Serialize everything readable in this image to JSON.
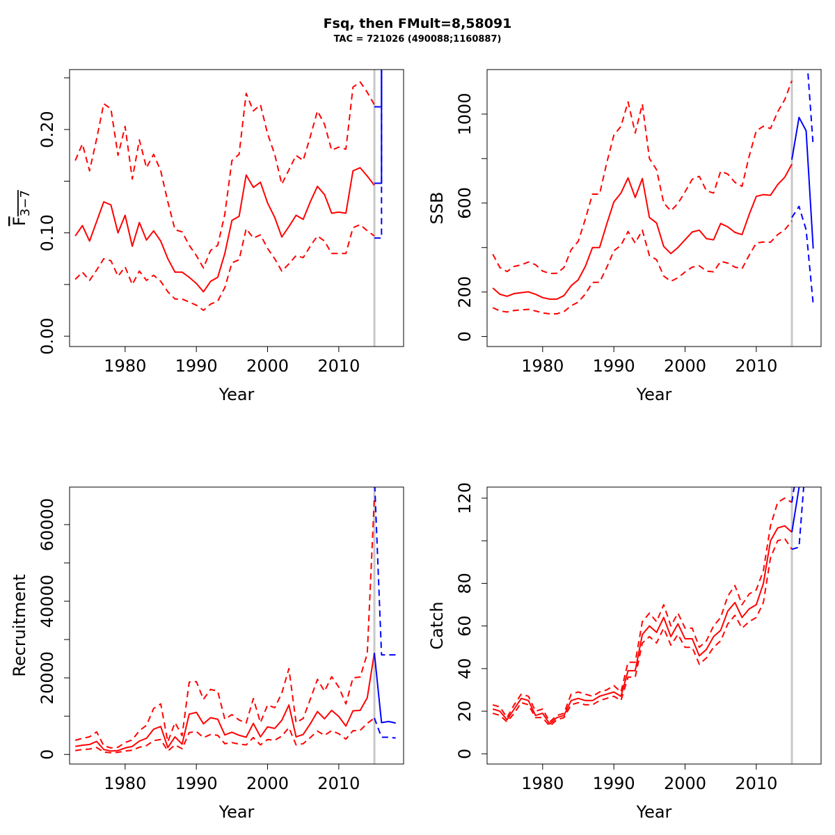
{
  "title": "Fsq, then FMult=8,58091",
  "subtitle": "TAC = 721026 (490088;1160887)",
  "colors": {
    "history": "#ff0000",
    "forecast": "#0000ff",
    "divider": "#c8c8c8",
    "axis": "#000000"
  },
  "chart_data": [
    {
      "id": "fbar",
      "type": "line",
      "xlabel": "Year",
      "ylabel_main": "F",
      "ylabel_sub": "3−7",
      "xlim": [
        1972.2,
        2019.1
      ],
      "ylim": [
        -0.01,
        0.258
      ],
      "xticks": [
        1980,
        1990,
        2000,
        2010
      ],
      "yticks": [
        0.0,
        0.05,
        0.1,
        0.15,
        0.2,
        0.25
      ],
      "yticklabels": [
        "0.00",
        "",
        "0.10",
        "",
        "0.20",
        ""
      ],
      "divider_x": 2015,
      "history": {
        "x": [
          1973,
          1974,
          1975,
          1976,
          1977,
          1978,
          1979,
          1980,
          1981,
          1982,
          1983,
          1984,
          1985,
          1986,
          1987,
          1988,
          1989,
          1990,
          1991,
          1992,
          1993,
          1994,
          1995,
          1996,
          1997,
          1998,
          1999,
          2000,
          2001,
          2002,
          2003,
          2004,
          2005,
          2006,
          2007,
          2008,
          2009,
          2010,
          2011,
          2012,
          2013,
          2014,
          2015
        ],
        "estimate": [
          0.097,
          0.107,
          0.092,
          0.111,
          0.13,
          0.127,
          0.1,
          0.117,
          0.087,
          0.11,
          0.093,
          0.102,
          0.092,
          0.075,
          0.062,
          0.062,
          0.057,
          0.051,
          0.043,
          0.053,
          0.057,
          0.08,
          0.112,
          0.116,
          0.156,
          0.144,
          0.149,
          0.129,
          0.115,
          0.096,
          0.106,
          0.117,
          0.113,
          0.13,
          0.145,
          0.137,
          0.119,
          0.12,
          0.119,
          0.16,
          0.163,
          0.155,
          0.146
        ],
        "lower": [
          0.055,
          0.062,
          0.054,
          0.064,
          0.075,
          0.073,
          0.058,
          0.067,
          0.05,
          0.063,
          0.054,
          0.059,
          0.053,
          0.043,
          0.036,
          0.036,
          0.033,
          0.03,
          0.025,
          0.031,
          0.034,
          0.047,
          0.071,
          0.074,
          0.104,
          0.095,
          0.098,
          0.085,
          0.075,
          0.063,
          0.07,
          0.078,
          0.076,
          0.087,
          0.097,
          0.092,
          0.08,
          0.08,
          0.08,
          0.105,
          0.108,
          0.102,
          0.097
        ],
        "upper": [
          0.17,
          0.186,
          0.16,
          0.191,
          0.225,
          0.22,
          0.175,
          0.203,
          0.152,
          0.19,
          0.163,
          0.176,
          0.16,
          0.13,
          0.103,
          0.101,
          0.088,
          0.078,
          0.066,
          0.083,
          0.088,
          0.118,
          0.17,
          0.176,
          0.235,
          0.218,
          0.224,
          0.196,
          0.176,
          0.147,
          0.161,
          0.175,
          0.17,
          0.193,
          0.218,
          0.205,
          0.18,
          0.183,
          0.181,
          0.241,
          0.246,
          0.236,
          0.224
        ]
      },
      "forecast": {
        "x": [
          2015,
          2016,
          2016,
          2017,
          2018
        ],
        "estimate": [
          0.148,
          0.148,
          0.4,
          0.4,
          0.4
        ],
        "lower": [
          0.095,
          0.095,
          0.3,
          0.3,
          0.3
        ],
        "upper": [
          0.222,
          0.222,
          0.5,
          0.5,
          0.5
        ]
      }
    },
    {
      "id": "ssb",
      "type": "line",
      "xlabel": "Year",
      "ylabel": "SSB",
      "xlim": [
        1972.2,
        2019.1
      ],
      "ylim": [
        -45,
        1200
      ],
      "xticks": [
        1980,
        1990,
        2000,
        2010
      ],
      "yticks": [
        0,
        200,
        400,
        600,
        800,
        1000
      ],
      "yticklabels": [
        "0",
        "200",
        "",
        "600",
        "",
        "1000"
      ],
      "divider_x": 2015,
      "history": {
        "x": [
          1973,
          1974,
          1975,
          1976,
          1977,
          1978,
          1979,
          1980,
          1981,
          1982,
          1983,
          1984,
          1985,
          1986,
          1987,
          1988,
          1989,
          1990,
          1991,
          1992,
          1993,
          1994,
          1995,
          1996,
          1997,
          1998,
          1999,
          2000,
          2001,
          2002,
          2003,
          2004,
          2005,
          2006,
          2007,
          2008,
          2009,
          2010,
          2011,
          2012,
          2013,
          2014,
          2015
        ],
        "estimate": [
          218,
          190,
          181,
          193,
          197,
          201,
          190,
          175,
          168,
          168,
          184,
          228,
          255,
          315,
          400,
          400,
          505,
          605,
          645,
          713,
          625,
          710,
          535,
          510,
          405,
          373,
          400,
          435,
          470,
          478,
          440,
          435,
          508,
          493,
          468,
          458,
          548,
          630,
          638,
          635,
          683,
          716,
          775
        ],
        "lower": [
          130,
          115,
          110,
          117,
          120,
          122,
          115,
          106,
          102,
          102,
          112,
          138,
          155,
          191,
          243,
          244,
          310,
          385,
          410,
          472,
          420,
          478,
          364,
          345,
          272,
          248,
          264,
          290,
          312,
          318,
          294,
          291,
          338,
          330,
          312,
          305,
          365,
          420,
          425,
          424,
          458,
          480,
          520
        ],
        "upper": [
          370,
          310,
          292,
          315,
          322,
          335,
          323,
          294,
          283,
          284,
          310,
          390,
          428,
          528,
          640,
          640,
          780,
          905,
          945,
          1055,
          915,
          1045,
          800,
          750,
          600,
          565,
          598,
          650,
          707,
          720,
          655,
          645,
          743,
          730,
          693,
          675,
          810,
          925,
          945,
          935,
          1010,
          1065,
          1150
        ]
      },
      "forecast": {
        "x": [
          2015,
          2016,
          2017,
          2018
        ],
        "estimate": [
          795,
          985,
          925,
          395
        ],
        "lower": [
          535,
          585,
          480,
          145
        ],
        "upper": [
          1250,
          1400,
          1300,
          855
        ]
      }
    },
    {
      "id": "recruitment",
      "type": "line",
      "xlabel": "Year",
      "ylabel": "Recruitment",
      "xlim": [
        1972.2,
        2019.1
      ],
      "ylim": [
        -2500,
        69800
      ],
      "xticks": [
        1980,
        1990,
        2000,
        2010
      ],
      "yticks": [
        0,
        10000,
        20000,
        30000,
        40000,
        50000,
        60000
      ],
      "yticklabels": [
        "0",
        "",
        "20000",
        "",
        "40000",
        "",
        "60000"
      ],
      "divider_x": 2015,
      "history": {
        "x": [
          1973,
          1974,
          1975,
          1976,
          1977,
          1978,
          1979,
          1980,
          1981,
          1982,
          1983,
          1984,
          1985,
          1986,
          1987,
          1988,
          1989,
          1990,
          1991,
          1992,
          1993,
          1994,
          1995,
          1996,
          1997,
          1998,
          1999,
          2000,
          2001,
          2002,
          2003,
          2004,
          2005,
          2006,
          2007,
          2008,
          2009,
          2010,
          2011,
          2012,
          2013,
          2014,
          2015
        ],
        "estimate": [
          2100,
          2400,
          2600,
          3400,
          1300,
          900,
          1000,
          1700,
          2100,
          3500,
          4200,
          6600,
          7300,
          1800,
          4600,
          2700,
          10500,
          11000,
          8000,
          9600,
          9200,
          5100,
          5800,
          5000,
          4500,
          8100,
          4600,
          7200,
          6800,
          8900,
          12900,
          4600,
          5200,
          8000,
          11200,
          9300,
          11500,
          9900,
          7400,
          11400,
          11500,
          14800,
          26500
        ],
        "lower": [
          1000,
          1300,
          1400,
          1800,
          600,
          450,
          550,
          900,
          1100,
          1900,
          2300,
          3600,
          3900,
          900,
          2500,
          1500,
          5700,
          6000,
          4400,
          5200,
          5000,
          2800,
          3100,
          2700,
          2500,
          4400,
          2500,
          3900,
          3700,
          4800,
          7000,
          2500,
          2800,
          4400,
          6100,
          5000,
          6200,
          5400,
          4000,
          6200,
          6300,
          8100,
          9500
        ],
        "upper": [
          3700,
          4200,
          4600,
          5900,
          2300,
          1700,
          1900,
          3100,
          3800,
          6200,
          7600,
          12000,
          13200,
          3300,
          8300,
          4900,
          18900,
          19000,
          14400,
          17000,
          16500,
          9200,
          10400,
          9000,
          8200,
          14600,
          8300,
          12900,
          12200,
          16000,
          22400,
          8300,
          9400,
          14400,
          19600,
          16500,
          20300,
          17600,
          13200,
          20000,
          20200,
          26300,
          67000
        ]
      },
      "forecast": {
        "x": [
          2015,
          2016,
          2017,
          2018
        ],
        "estimate": [
          26500,
          8300,
          8600,
          8200
        ],
        "lower": [
          9500,
          4500,
          4500,
          4300
        ],
        "upper": [
          73000,
          26000,
          26000,
          26000
        ]
      }
    },
    {
      "id": "catch",
      "type": "line",
      "xlabel": "Year",
      "ylabel": "Catch",
      "xlim": [
        1972.2,
        2019.1
      ],
      "ylim": [
        -4.8,
        125.2
      ],
      "xticks": [
        1980,
        1990,
        2000,
        2010
      ],
      "yticks": [
        0,
        20,
        40,
        60,
        80,
        100,
        120
      ],
      "yticklabels": [
        "0",
        "20",
        "40",
        "60",
        "80",
        "",
        "120"
      ],
      "divider_x": 2015,
      "history": {
        "x": [
          1973,
          1974,
          1975,
          1976,
          1977,
          1978,
          1979,
          1980,
          1981,
          1982,
          1983,
          1984,
          1985,
          1986,
          1987,
          1988,
          1989,
          1990,
          1991,
          1992,
          1993,
          1994,
          1995,
          1996,
          1997,
          1998,
          1999,
          2000,
          2001,
          2002,
          2003,
          2004,
          2005,
          2006,
          2007,
          2008,
          2009,
          2010,
          2011,
          2012,
          2013,
          2014,
          2015
        ],
        "estimate": [
          21,
          20,
          16,
          21,
          26,
          25,
          18,
          19,
          14,
          17,
          18,
          25,
          26,
          25,
          25,
          27,
          28,
          29,
          27,
          39,
          39,
          56,
          60,
          57,
          64,
          55,
          61,
          54,
          54,
          46,
          49,
          55,
          58,
          67,
          71,
          64,
          68,
          70,
          80,
          100,
          106,
          107,
          104
        ],
        "lower": [
          19,
          18,
          15,
          19,
          24,
          23,
          17,
          17,
          13,
          16,
          17,
          23,
          24,
          23,
          23,
          25,
          26,
          27,
          25,
          36,
          36,
          52,
          55,
          52,
          59,
          51,
          56,
          50,
          50,
          42,
          45,
          50,
          53,
          61,
          65,
          59,
          62,
          64,
          71,
          92,
          100,
          101,
          96
        ],
        "upper": [
          23,
          22,
          17,
          23,
          28,
          27,
          20,
          21,
          15,
          18,
          19,
          28,
          29,
          28,
          27,
          29,
          30,
          32,
          29,
          43,
          43,
          62,
          66,
          62,
          70,
          60,
          66,
          59,
          59,
          50,
          53,
          60,
          64,
          74,
          79,
          70,
          75,
          77,
          86,
          107,
          118,
          120,
          118
        ]
      },
      "forecast": {
        "x": [
          2015,
          2016,
          2017
        ],
        "estimate": [
          104,
          125,
          150
        ],
        "lower": [
          96,
          97,
          140
        ],
        "upper": [
          118,
          140,
          170
        ]
      }
    }
  ]
}
